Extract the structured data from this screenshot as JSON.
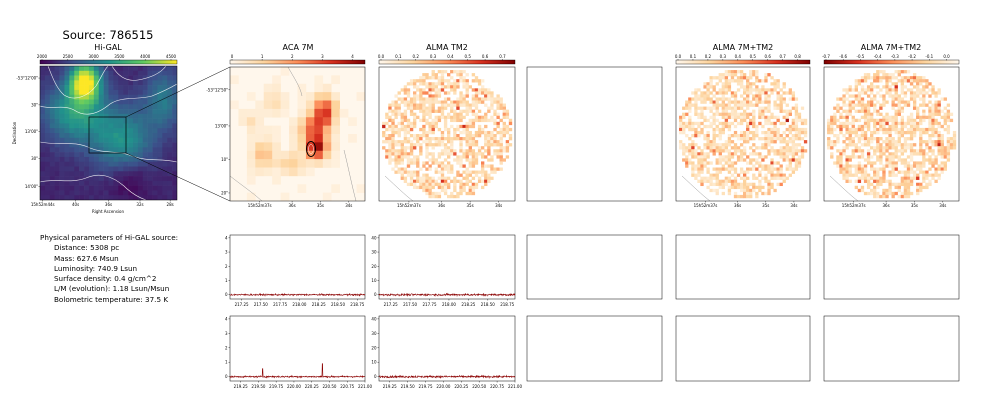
{
  "source_title": "Source: 786515",
  "higal": {
    "title": "Hi-GAL",
    "colorbar_ticks": [
      "2000",
      "2500",
      "3000",
      "3500",
      "4000",
      "4500"
    ],
    "yticks": [
      "-53°12'00\"",
      "30\"",
      "13'00\"",
      "30\"",
      "14'00\""
    ],
    "xticks": [
      "15h52m44s",
      "40s",
      "36s",
      "32s",
      "28s"
    ],
    "xlabel": "Right Ascension",
    "ylabel": "Declination"
  },
  "aca": {
    "title": "ACA 7M",
    "colorbar_ticks": [
      "0",
      "1",
      "2",
      "3",
      "4"
    ],
    "yticks": [
      "-53°12'50\"",
      "13'00\"",
      "10\"",
      "20\""
    ],
    "xticks": [
      "15h52m37s",
      "36s",
      "35s",
      "34s"
    ]
  },
  "tm2": {
    "title": "ALMA TM2",
    "colorbar_ticks": [
      "0.0",
      "0.1",
      "0.2",
      "0.3",
      "0.4",
      "0.5",
      "0.6",
      "0.7"
    ],
    "xticks": [
      "15h52m37s",
      "36s",
      "35s",
      "34s"
    ]
  },
  "combo1": {
    "title": "ALMA 7M+TM2",
    "colorbar_ticks": [
      "0.0",
      "0.1",
      "0.2",
      "0.3",
      "0.4",
      "0.5",
      "0.6",
      "0.7",
      "0.8"
    ],
    "xticks": [
      "15h52m37s",
      "36s",
      "35s",
      "34s"
    ]
  },
  "combo2": {
    "title": "ALMA 7M+TM2",
    "colorbar_ticks": [
      "-0.7",
      "-0.6",
      "-0.5",
      "-0.4",
      "-0.3",
      "-0.2",
      "-0.1",
      "0.0"
    ],
    "xticks": [
      "15h52m37s",
      "36s",
      "35s",
      "34s"
    ]
  },
  "params": {
    "heading": "Physical parameters of Hi-GAL source:",
    "lines": [
      "Distance: 5308 pc",
      "Mass: 627.6 Msun",
      "Luminosity: 740.9 Lsun",
      "Surface density: 0.4 g/cm^2",
      "L/M (evolution): 1.18 Lsun/Msun",
      "Bolometric temperature: 37.5 K"
    ]
  },
  "colors": {
    "spectrum_line": "#8b0000",
    "panel_border": "#000000",
    "viridis_low": "#440154",
    "viridis_high": "#fde725",
    "orrd_low": "#fff7ec",
    "orrd_high": "#7f0000"
  },
  "chart_data": [
    {
      "type": "heatmap",
      "title": "Hi-GAL",
      "colormap": "viridis",
      "clim": [
        1700,
        4600
      ],
      "xlabel": "Right Ascension",
      "ylabel": "Declination",
      "contours": "white",
      "zoom_box": true
    },
    {
      "type": "heatmap",
      "title": "ACA 7M",
      "colormap": "OrRd",
      "clim": [
        0,
        4.5
      ],
      "peak_region": "black ellipse at the emission peak"
    },
    {
      "type": "heatmap",
      "title": "ALMA TM2",
      "colormap": "OrRd",
      "clim": [
        0,
        0.75
      ],
      "footprint": "circular"
    },
    {
      "type": "heatmap",
      "title": "ALMA 7M+TM2",
      "colormap": "OrRd",
      "clim": [
        0,
        0.85
      ],
      "footprint": "circular"
    },
    {
      "type": "heatmap",
      "title": "ALMA 7M+TM2",
      "colormap": "OrRd",
      "clim": [
        -0.75,
        0
      ],
      "footprint": "circular"
    },
    {
      "type": "line",
      "panel": "ACA 7M spectrum, row 1",
      "xlim": [
        217.1,
        218.85
      ],
      "ylim": [
        -0.3,
        4.2
      ],
      "xticks": [
        217.25,
        217.5,
        217.75,
        218.0,
        218.25,
        218.5,
        218.75
      ],
      "yticks": [
        0,
        1,
        2,
        3,
        4
      ],
      "baseline": 0,
      "noise_rms": 0.04,
      "peaks": []
    },
    {
      "type": "line",
      "panel": "ALMA TM2 spectrum, row 1",
      "xlim": [
        217.1,
        218.85
      ],
      "ylim": [
        -3,
        42
      ],
      "xticks": [
        217.25,
        217.5,
        217.75,
        218.0,
        218.25,
        218.5,
        218.75
      ],
      "yticks": [
        0,
        10,
        20,
        30,
        40
      ],
      "baseline": 0,
      "noise_rms": 0.5,
      "peaks": []
    },
    {
      "type": "line",
      "panel": "ACA 7M spectrum, row 2",
      "xlim": [
        219.1,
        221.0
      ],
      "ylim": [
        -0.3,
        4.2
      ],
      "xticks": [
        219.25,
        219.5,
        219.75,
        220.0,
        220.25,
        220.5,
        220.75,
        221.0
      ],
      "yticks": [
        0,
        1,
        2,
        3,
        4
      ],
      "baseline": 0,
      "noise_rms": 0.04,
      "peaks": [
        {
          "x": 219.56,
          "y": 0.55
        },
        {
          "x": 220.4,
          "y": 0.9
        }
      ]
    },
    {
      "type": "line",
      "panel": "ALMA TM2 spectrum, row 2",
      "xlim": [
        219.1,
        221.0
      ],
      "ylim": [
        -3,
        42
      ],
      "xticks": [
        219.25,
        219.5,
        219.75,
        220.0,
        220.25,
        220.5,
        220.75,
        221.0
      ],
      "yticks": [
        0,
        10,
        20,
        30,
        40
      ],
      "baseline": 0,
      "noise_rms": 0.5,
      "peaks": []
    }
  ]
}
